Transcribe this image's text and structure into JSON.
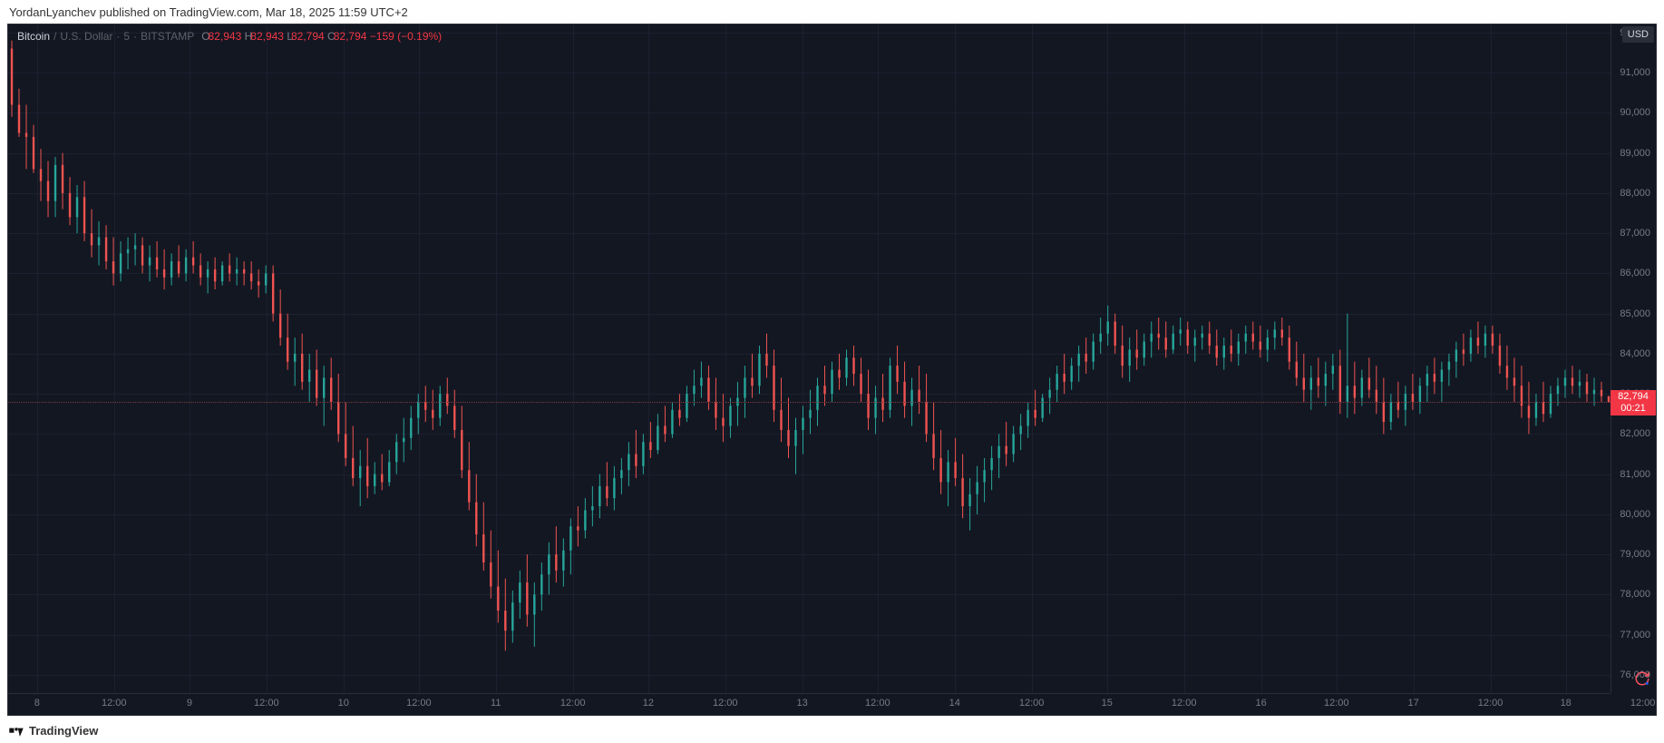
{
  "header": {
    "text": "YordanLyanchev published on TradingView.com, Mar 18, 2025 11:59 UTC+2"
  },
  "footer": {
    "brand": "TradingView"
  },
  "legend": {
    "symbol": "Bitcoin",
    "sep1": "/",
    "quote": "U.S. Dollar",
    "dot1": "·",
    "interval": "5",
    "dot2": "·",
    "exchange": "BITSTAMP",
    "o_label": "O",
    "o": "82,943",
    "h_label": "H",
    "h": "82,943",
    "l_label": "L",
    "l": "82,794",
    "c_label": "C",
    "c": "82,794",
    "chg": "−159 (−0.19%)"
  },
  "axis": {
    "currency_badge": "USD",
    "y_min": 75500,
    "y_max": 92200,
    "y_ticks": [
      92000,
      91000,
      90000,
      89000,
      88000,
      87000,
      86000,
      85000,
      84000,
      83000,
      82000,
      81000,
      80000,
      79000,
      78000,
      77000,
      76000
    ],
    "y_tick_labels": [
      "92,000",
      "91,000",
      "90,000",
      "89,000",
      "88,000",
      "87,000",
      "86,000",
      "85,000",
      "84,000",
      "83,000",
      "82,000",
      "81,000",
      "80,000",
      "79,000",
      "78,000",
      "77,000",
      "76,000"
    ],
    "x_ticks": [
      {
        "t": 0.018,
        "label": "8"
      },
      {
        "t": 0.066,
        "label": "12:00"
      },
      {
        "t": 0.113,
        "label": "9"
      },
      {
        "t": 0.161,
        "label": "12:00"
      },
      {
        "t": 0.209,
        "label": "10"
      },
      {
        "t": 0.256,
        "label": "12:00"
      },
      {
        "t": 0.304,
        "label": "11"
      },
      {
        "t": 0.352,
        "label": "12:00"
      },
      {
        "t": 0.399,
        "label": "12"
      },
      {
        "t": 0.447,
        "label": "12:00"
      },
      {
        "t": 0.495,
        "label": "13"
      },
      {
        "t": 0.542,
        "label": "12:00"
      },
      {
        "t": 0.59,
        "label": "14"
      },
      {
        "t": 0.638,
        "label": "12:00"
      },
      {
        "t": 0.685,
        "label": "15"
      },
      {
        "t": 0.733,
        "label": "12:00"
      },
      {
        "t": 0.781,
        "label": "16"
      },
      {
        "t": 0.828,
        "label": "12:00"
      },
      {
        "t": 0.876,
        "label": "17"
      },
      {
        "t": 0.924,
        "label": "12:00"
      },
      {
        "t": 0.971,
        "label": "18"
      },
      {
        "t": 1.019,
        "label": "12:00"
      }
    ]
  },
  "price_indicator": {
    "value": 82794,
    "label": "82,794",
    "countdown": "00:21",
    "line_color": "#7d3a3f",
    "tag_bg": "#f23645"
  },
  "chart": {
    "type": "candlestick",
    "colors": {
      "background": "#131722",
      "grid": "#1c2030",
      "up_body": "#26a69a",
      "up_wick": "#26a69a",
      "down_body": "#ef5350",
      "down_wick": "#ef5350",
      "text": "#787b86"
    },
    "title_fontsize": 12,
    "candle_width": 2.4,
    "series": [
      [
        91600,
        91800,
        89900,
        90200
      ],
      [
        90200,
        90600,
        89400,
        89500
      ],
      [
        89500,
        90200,
        88600,
        89400
      ],
      [
        89400,
        89700,
        88500,
        88600
      ],
      [
        88600,
        89100,
        87800,
        88300
      ],
      [
        88300,
        88800,
        87400,
        87800
      ],
      [
        87800,
        88900,
        87400,
        88700
      ],
      [
        88700,
        89000,
        87600,
        88000
      ],
      [
        88000,
        88400,
        87200,
        87400
      ],
      [
        87400,
        88200,
        87000,
        87900
      ],
      [
        87900,
        88300,
        86800,
        87000
      ],
      [
        87000,
        87600,
        86400,
        86700
      ],
      [
        86700,
        87300,
        86200,
        86900
      ],
      [
        86900,
        87200,
        86100,
        86300
      ],
      [
        86300,
        86900,
        85700,
        86000
      ],
      [
        86000,
        86800,
        85800,
        86500
      ],
      [
        86500,
        86900,
        86100,
        86600
      ],
      [
        86600,
        87000,
        86200,
        86700
      ],
      [
        86700,
        86900,
        86000,
        86200
      ],
      [
        86200,
        86700,
        85800,
        86400
      ],
      [
        86400,
        86800,
        85900,
        86100
      ],
      [
        86100,
        86600,
        85600,
        85900
      ],
      [
        85900,
        86500,
        85700,
        86300
      ],
      [
        86300,
        86700,
        85900,
        86000
      ],
      [
        86000,
        86600,
        85800,
        86400
      ],
      [
        86400,
        86800,
        86000,
        86200
      ],
      [
        86200,
        86500,
        85700,
        85900
      ],
      [
        85900,
        86300,
        85500,
        86100
      ],
      [
        86100,
        86400,
        85600,
        85800
      ],
      [
        85800,
        86300,
        85700,
        86200
      ],
      [
        86200,
        86500,
        85800,
        86000
      ],
      [
        86000,
        86400,
        85700,
        86100
      ],
      [
        86100,
        86300,
        85700,
        86000
      ],
      [
        86000,
        86300,
        85600,
        85800
      ],
      [
        85800,
        86100,
        85400,
        85700
      ],
      [
        85700,
        86200,
        85500,
        86000
      ],
      [
        86000,
        86200,
        84800,
        85000
      ],
      [
        85000,
        85600,
        84200,
        84400
      ],
      [
        84400,
        85000,
        83600,
        83800
      ],
      [
        83800,
        84400,
        83200,
        84000
      ],
      [
        84000,
        84500,
        83100,
        83300
      ],
      [
        83300,
        84000,
        82800,
        83600
      ],
      [
        83600,
        84100,
        82700,
        82900
      ],
      [
        82900,
        83700,
        82200,
        83400
      ],
      [
        83400,
        83900,
        82600,
        82800
      ],
      [
        82800,
        83500,
        81800,
        82000
      ],
      [
        82000,
        82800,
        81200,
        81400
      ],
      [
        81400,
        82200,
        80700,
        80900
      ],
      [
        80900,
        81600,
        80200,
        81200
      ],
      [
        81200,
        81900,
        80400,
        80700
      ],
      [
        80700,
        81300,
        80500,
        81000
      ],
      [
        81000,
        81500,
        80600,
        80800
      ],
      [
        80800,
        81600,
        80700,
        81300
      ],
      [
        81300,
        82000,
        81000,
        81800
      ],
      [
        81800,
        82400,
        81300,
        81900
      ],
      [
        81900,
        82700,
        81600,
        82400
      ],
      [
        82400,
        83000,
        82000,
        82800
      ],
      [
        82800,
        83200,
        82300,
        82600
      ],
      [
        82600,
        83100,
        82100,
        82400
      ],
      [
        82400,
        83200,
        82200,
        83000
      ],
      [
        83000,
        83400,
        82500,
        82700
      ],
      [
        82700,
        83100,
        81900,
        82100
      ],
      [
        82100,
        82700,
        80900,
        81100
      ],
      [
        81100,
        81800,
        80100,
        80300
      ],
      [
        80300,
        81000,
        79200,
        79500
      ],
      [
        79500,
        80300,
        78600,
        78800
      ],
      [
        78800,
        79600,
        77900,
        78200
      ],
      [
        78200,
        79100,
        77300,
        77600
      ],
      [
        77600,
        78400,
        76600,
        77100
      ],
      [
        77100,
        78100,
        76800,
        77800
      ],
      [
        77800,
        78600,
        77400,
        78300
      ],
      [
        78300,
        79000,
        77200,
        77500
      ],
      [
        77500,
        78300,
        76700,
        78000
      ],
      [
        78000,
        78800,
        77600,
        78500
      ],
      [
        78500,
        79300,
        78000,
        79000
      ],
      [
        79000,
        79700,
        78300,
        78600
      ],
      [
        78600,
        79400,
        78200,
        79100
      ],
      [
        79100,
        79900,
        78500,
        79700
      ],
      [
        79700,
        80200,
        79200,
        79600
      ],
      [
        79600,
        80400,
        79400,
        80100
      ],
      [
        80100,
        80700,
        79700,
        80200
      ],
      [
        80200,
        81000,
        79900,
        80700
      ],
      [
        80700,
        81300,
        80200,
        80400
      ],
      [
        80400,
        81200,
        80100,
        80900
      ],
      [
        80900,
        81400,
        80500,
        81100
      ],
      [
        81100,
        81800,
        80700,
        81500
      ],
      [
        81500,
        82100,
        80900,
        81200
      ],
      [
        81200,
        82000,
        81000,
        81800
      ],
      [
        81800,
        82300,
        81400,
        81600
      ],
      [
        81600,
        82500,
        81500,
        82200
      ],
      [
        82200,
        82700,
        81800,
        82000
      ],
      [
        82000,
        82800,
        81900,
        82600
      ],
      [
        82600,
        83000,
        82200,
        82400
      ],
      [
        82400,
        83200,
        82300,
        83000
      ],
      [
        83000,
        83600,
        82700,
        83200
      ],
      [
        83200,
        83800,
        82900,
        83400
      ],
      [
        83400,
        83700,
        82600,
        82800
      ],
      [
        82800,
        83400,
        82100,
        82400
      ],
      [
        82400,
        83000,
        81800,
        82200
      ],
      [
        82200,
        82900,
        81900,
        82700
      ],
      [
        82700,
        83300,
        82200,
        82900
      ],
      [
        82900,
        83700,
        82400,
        83400
      ],
      [
        83400,
        84000,
        82900,
        83200
      ],
      [
        83200,
        84200,
        83000,
        84000
      ],
      [
        84000,
        84500,
        83400,
        83700
      ],
      [
        83700,
        84100,
        82300,
        82600
      ],
      [
        82600,
        83400,
        81800,
        82100
      ],
      [
        82100,
        82900,
        81400,
        81700
      ],
      [
        81700,
        82400,
        81000,
        82100
      ],
      [
        82100,
        82700,
        81500,
        82400
      ],
      [
        82400,
        83100,
        82000,
        82600
      ],
      [
        82600,
        83400,
        82200,
        83200
      ],
      [
        83200,
        83700,
        82700,
        83000
      ],
      [
        83000,
        83800,
        82800,
        83600
      ],
      [
        83600,
        84000,
        83100,
        83400
      ],
      [
        83400,
        84100,
        83200,
        83900
      ],
      [
        83900,
        84200,
        83200,
        83500
      ],
      [
        83500,
        83900,
        82800,
        83000
      ],
      [
        83000,
        83600,
        82100,
        82400
      ],
      [
        82400,
        83200,
        82000,
        82900
      ],
      [
        82900,
        83500,
        82300,
        82600
      ],
      [
        82600,
        83900,
        82400,
        83700
      ],
      [
        83700,
        84200,
        83000,
        83300
      ],
      [
        83300,
        83800,
        82400,
        82700
      ],
      [
        82700,
        83400,
        82200,
        83100
      ],
      [
        83100,
        83700,
        82500,
        82800
      ],
      [
        82800,
        83500,
        81800,
        82000
      ],
      [
        82000,
        82800,
        81100,
        81400
      ],
      [
        81400,
        82100,
        80500,
        80800
      ],
      [
        80800,
        81600,
        80200,
        81300
      ],
      [
        81300,
        81900,
        80700,
        80900
      ],
      [
        80900,
        81500,
        79900,
        80200
      ],
      [
        80200,
        80900,
        79600,
        80500
      ],
      [
        80500,
        81200,
        80000,
        80800
      ],
      [
        80800,
        81400,
        80300,
        81100
      ],
      [
        81100,
        81700,
        80600,
        81400
      ],
      [
        81400,
        82000,
        80900,
        81700
      ],
      [
        81700,
        82300,
        81200,
        81500
      ],
      [
        81500,
        82200,
        81300,
        82000
      ],
      [
        82000,
        82500,
        81600,
        82200
      ],
      [
        82200,
        82800,
        81900,
        82600
      ],
      [
        82600,
        83100,
        82200,
        82400
      ],
      [
        82400,
        83000,
        82300,
        82900
      ],
      [
        82900,
        83400,
        82500,
        83100
      ],
      [
        83100,
        83700,
        82800,
        83500
      ],
      [
        83500,
        84000,
        83000,
        83300
      ],
      [
        83300,
        83900,
        83100,
        83700
      ],
      [
        83700,
        84200,
        83300,
        84000
      ],
      [
        84000,
        84400,
        83500,
        83800
      ],
      [
        83800,
        84500,
        83600,
        84300
      ],
      [
        84300,
        84900,
        84000,
        84500
      ],
      [
        84500,
        85200,
        84200,
        84800
      ],
      [
        84800,
        85000,
        84000,
        84200
      ],
      [
        84200,
        84700,
        83400,
        83700
      ],
      [
        83700,
        84400,
        83300,
        84100
      ],
      [
        84100,
        84600,
        83600,
        83900
      ],
      [
        83900,
        84500,
        83700,
        84300
      ],
      [
        84300,
        84800,
        83900,
        84500
      ],
      [
        84500,
        84900,
        84100,
        84400
      ],
      [
        84400,
        84800,
        83900,
        84100
      ],
      [
        84100,
        84700,
        84000,
        84500
      ],
      [
        84500,
        84900,
        84200,
        84600
      ],
      [
        84600,
        84800,
        84000,
        84200
      ],
      [
        84200,
        84600,
        83800,
        84400
      ],
      [
        84400,
        84700,
        84100,
        84500
      ],
      [
        84500,
        84800,
        84000,
        84200
      ],
      [
        84200,
        84600,
        83700,
        83900
      ],
      [
        83900,
        84400,
        83600,
        84200
      ],
      [
        84200,
        84600,
        83800,
        84000
      ],
      [
        84000,
        84500,
        83700,
        84300
      ],
      [
        84300,
        84700,
        84000,
        84500
      ],
      [
        84500,
        84800,
        84100,
        84300
      ],
      [
        84300,
        84700,
        83900,
        84100
      ],
      [
        84100,
        84600,
        83800,
        84400
      ],
      [
        84400,
        84800,
        84100,
        84600
      ],
      [
        84600,
        84900,
        84200,
        84400
      ],
      [
        84400,
        84700,
        83600,
        83800
      ],
      [
        83800,
        84300,
        83200,
        83400
      ],
      [
        83400,
        84000,
        82800,
        83100
      ],
      [
        83100,
        83700,
        82600,
        83400
      ],
      [
        83400,
        83900,
        82900,
        83200
      ],
      [
        83200,
        83800,
        82700,
        83500
      ],
      [
        83500,
        84000,
        83100,
        83700
      ],
      [
        83700,
        84100,
        82500,
        82800
      ],
      [
        82800,
        85000,
        82400,
        83200
      ],
      [
        83200,
        83800,
        82500,
        82900
      ],
      [
        82900,
        83600,
        82700,
        83400
      ],
      [
        83400,
        83900,
        82900,
        83100
      ],
      [
        83100,
        83700,
        82500,
        82800
      ],
      [
        82800,
        83400,
        82000,
        82300
      ],
      [
        82300,
        83000,
        82100,
        82800
      ],
      [
        82800,
        83300,
        82400,
        82600
      ],
      [
        82600,
        83200,
        82200,
        83000
      ],
      [
        83000,
        83500,
        82600,
        82800
      ],
      [
        82800,
        83400,
        82500,
        83200
      ],
      [
        83200,
        83700,
        82800,
        83500
      ],
      [
        83500,
        83900,
        83000,
        83300
      ],
      [
        83300,
        83800,
        82800,
        83600
      ],
      [
        83600,
        84000,
        83200,
        83800
      ],
      [
        83800,
        84300,
        83400,
        84100
      ],
      [
        84100,
        84500,
        83700,
        84000
      ],
      [
        84000,
        84600,
        83800,
        84400
      ],
      [
        84400,
        84800,
        84000,
        84200
      ],
      [
        84200,
        84700,
        83900,
        84500
      ],
      [
        84500,
        84700,
        84000,
        84200
      ],
      [
        84200,
        84500,
        83500,
        83700
      ],
      [
        83700,
        84200,
        83100,
        83400
      ],
      [
        83400,
        83900,
        82800,
        83200
      ],
      [
        83200,
        83700,
        82400,
        82700
      ],
      [
        82700,
        83300,
        82000,
        82400
      ],
      [
        82400,
        83000,
        82200,
        82800
      ],
      [
        82800,
        83300,
        82300,
        82500
      ],
      [
        82500,
        83200,
        82400,
        83000
      ],
      [
        83000,
        83400,
        82700,
        83200
      ],
      [
        83200,
        83600,
        82900,
        83400
      ],
      [
        83400,
        83700,
        83000,
        83200
      ],
      [
        83200,
        83600,
        82900,
        83300
      ],
      [
        83300,
        83500,
        82800,
        83000
      ],
      [
        83000,
        83400,
        82700,
        83100
      ],
      [
        83100,
        83300,
        82800,
        82943
      ],
      [
        82943,
        82943,
        82794,
        82794
      ]
    ]
  }
}
